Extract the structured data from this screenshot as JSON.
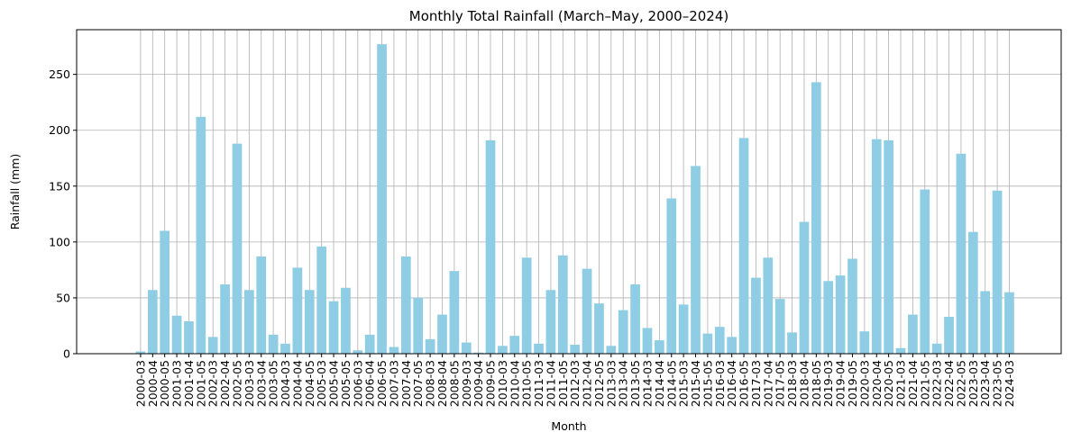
{
  "chart_data": {
    "type": "bar",
    "title": "Monthly Total Rainfall (March–May, 2000–2024)",
    "xlabel": "Month",
    "ylabel": "Rainfall (mm)",
    "ylim": [
      0,
      290
    ],
    "yticks": [
      0,
      50,
      100,
      150,
      200,
      250
    ],
    "grid": true,
    "bar_color": "#8ecde3",
    "categories": [
      "2000-03",
      "2000-04",
      "2000-05",
      "2001-03",
      "2001-04",
      "2001-05",
      "2002-03",
      "2002-04",
      "2002-05",
      "2003-03",
      "2003-04",
      "2003-05",
      "2004-03",
      "2004-04",
      "2004-05",
      "2005-03",
      "2005-04",
      "2005-05",
      "2006-03",
      "2006-04",
      "2006-05",
      "2007-03",
      "2007-04",
      "2007-05",
      "2008-03",
      "2008-04",
      "2008-05",
      "2009-03",
      "2009-04",
      "2009-05",
      "2010-03",
      "2010-04",
      "2010-05",
      "2011-03",
      "2011-04",
      "2011-05",
      "2012-03",
      "2012-04",
      "2012-05",
      "2013-03",
      "2013-04",
      "2013-05",
      "2014-03",
      "2014-04",
      "2014-05",
      "2015-03",
      "2015-04",
      "2015-05",
      "2016-03",
      "2016-04",
      "2016-05",
      "2017-03",
      "2017-04",
      "2017-05",
      "2018-03",
      "2018-04",
      "2018-05",
      "2019-03",
      "2019-04",
      "2019-05",
      "2020-03",
      "2020-04",
      "2020-05",
      "2021-03",
      "2021-04",
      "2021-05",
      "2022-03",
      "2022-04",
      "2022-05",
      "2023-03",
      "2023-04",
      "2023-05",
      "2024-03"
    ],
    "tick_labels": [
      "2000-03",
      "2000-04",
      "2000-05",
      "2001-03",
      "2001-04",
      "2001-05",
      "2002-03",
      "2002-04",
      "2002-05",
      "2003-03",
      "2003-04",
      "2003-05",
      "2004-03",
      "2004-04",
      "2004-05",
      "2005-03",
      "2005-04",
      "2005-05",
      "2006-03",
      "2006-04",
      "2006-05",
      "2007-03",
      "2007-04",
      "2007-05",
      "2008-03",
      "2008-04",
      "2008-05",
      "2009-03",
      "2009-04",
      "2009-05",
      "2010-03",
      "2010-04",
      "2010-05",
      "2011-03",
      "2011-04",
      "2011-05",
      "2012-03",
      "2012-04",
      "2012-05",
      "2013-03",
      "2013-04",
      "2013-05",
      "2014-03",
      "2014-04",
      "2014-05",
      "2015-03",
      "2015-04",
      "2015-05",
      "2016-03",
      "2016-04",
      "2016-05",
      "2017-03",
      "2017-04",
      "2017-05",
      "2018-03",
      "2018-04",
      "2018-05",
      "2019-03",
      "2019-04",
      "2019-05",
      "2020-03",
      "2020-04",
      "2020-05",
      "2021-03",
      "2021-04",
      "2021-05",
      "2022-03",
      "2022-04",
      "2022-05",
      "2023-03",
      "2023-04",
      "2023-05",
      "2024-03"
    ],
    "values": [
      2,
      57,
      110,
      34,
      29,
      212,
      15,
      62,
      188,
      57,
      87,
      17,
      9,
      77,
      57,
      96,
      47,
      59,
      3,
      17,
      277,
      6,
      87,
      50,
      13,
      35,
      74,
      10,
      1,
      191,
      7,
      16,
      86,
      9,
      57,
      88,
      8,
      76,
      45,
      7,
      39,
      62,
      23,
      12,
      139,
      44,
      168,
      18,
      24,
      15,
      193,
      68,
      86,
      49,
      19,
      118,
      243,
      65,
      70,
      85,
      20,
      192,
      191,
      5,
      35,
      147,
      9,
      33,
      179,
      109,
      56,
      146,
      55
    ]
  }
}
